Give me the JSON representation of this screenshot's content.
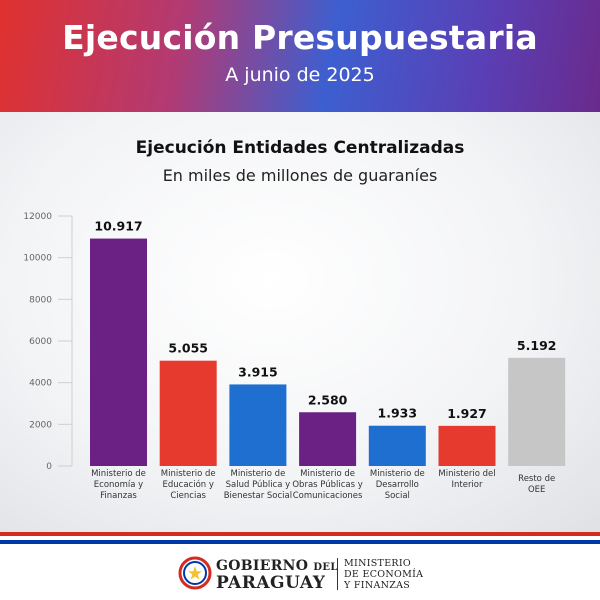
{
  "header": {
    "title": "Ejecución Presupuestaria",
    "subtitle": "A junio de 2025"
  },
  "colors": {
    "purple": "#6a2183",
    "red": "#e63a2f",
    "blue": "#1f6fd1",
    "gray": "#c6c6c6"
  },
  "chart_data": {
    "type": "bar",
    "title": "Ejecución Entidades Centralizadas",
    "subtitle": "En miles de millones de guaraníes",
    "xlabel": "",
    "ylabel": "",
    "ylim": [
      0,
      12000
    ],
    "yticks": [
      "0",
      "2000",
      "4000",
      "6000",
      "8000",
      "10000",
      "12000"
    ],
    "grid": false,
    "categories": [
      [
        "Ministerio de",
        "Economía y",
        "Finanzas"
      ],
      [
        "Ministerio de",
        "Educación y",
        "Ciencias"
      ],
      [
        "Ministerio de",
        "Salud Pública y",
        "Bienestar Social"
      ],
      [
        "Ministerio de",
        "Obras Públicas y",
        "Comunicaciones"
      ],
      [
        "Ministerio de",
        "Desarrollo",
        "Social"
      ],
      [
        "Ministerio del",
        "Interior"
      ],
      [
        "Resto de",
        "OEE"
      ]
    ],
    "values": [
      10917,
      5055,
      3915,
      2580,
      1933,
      1927,
      5192
    ],
    "value_labels": [
      "10.917",
      "5.055",
      "3.915",
      "2.580",
      "1.933",
      "1.927",
      "5.192"
    ],
    "bar_colors": [
      "#6a2183",
      "#e63a2f",
      "#1f6fd1",
      "#6a2183",
      "#1f6fd1",
      "#e63a2f",
      "#c6c6c6"
    ]
  },
  "footer": {
    "gobierno_1": "GOBIERNO",
    "gobierno_small": "DEL",
    "gobierno_2": "PARAGUAY",
    "ministerio_1": "MINISTERIO",
    "ministerio_2": "DE ECONOMÍA",
    "ministerio_3": "Y FINANZAS"
  }
}
